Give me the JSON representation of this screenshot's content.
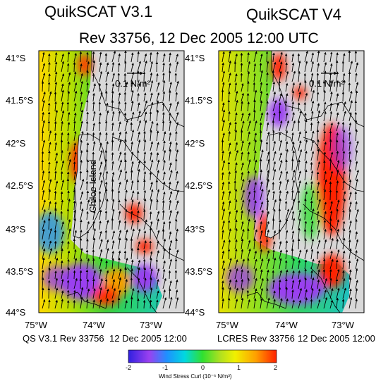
{
  "titles": {
    "left": "QuikSCAT V3.1",
    "right": "QuikSCAT V4",
    "subtitle": "Rev 33756, 12 Dec 2005 12:00 UTC"
  },
  "panels": [
    {
      "id": "v31",
      "footer": "QS V3.1 Rev 33756",
      "footer_date": "12 Dec  2005 12:00",
      "scale_label": "0.1 N/m²",
      "island_label": "Chiloe Island",
      "lat_ticks": [
        "41°S",
        "41.5°S",
        "42°S",
        "42.5°S",
        "43°S",
        "43.5°S",
        "44°S"
      ],
      "lon_ticks": [
        "75°W",
        "74°W",
        "73°W"
      ]
    },
    {
      "id": "v4",
      "footer": "LCRES Rev 33756",
      "footer_date": "12 Dec  2005 12:00",
      "scale_label": "0.1 N/m²",
      "lat_ticks": [
        "41°S",
        "41.5°S",
        "42°S",
        "42.5°S",
        "43°S",
        "43.5°S",
        "44°S"
      ],
      "lon_ticks": [
        "75°W",
        "74°W",
        "73°W"
      ]
    }
  ],
  "colorbar": {
    "label": "Wind Stress Curl (10⁻⁶ N/m³)",
    "ticks": [
      "-2",
      "-1",
      "0",
      "1",
      "2"
    ],
    "range": [
      -2,
      2
    ],
    "colors": [
      "#3020e0",
      "#9a40f0",
      "#1e90ff",
      "#00d8e0",
      "#30e030",
      "#b0e020",
      "#f0f000",
      "#ffa000",
      "#ff2000"
    ]
  },
  "map": {
    "land_color": "#d9d9d9",
    "lat_range": [
      -44,
      -41
    ],
    "lon_range": [
      -75,
      -72.5
    ]
  },
  "chart_data": [
    {
      "type": "heatmap",
      "title": "QuikSCAT V3.1",
      "variable": "Wind Stress Curl",
      "units": "10⁻⁶ N/m³",
      "color_range": [
        -2,
        2
      ],
      "x_axis": "longitude",
      "x_range": [
        -75,
        -72.5
      ],
      "y_axis": "latitude",
      "y_range": [
        -44,
        -41
      ],
      "regions": [
        {
          "lat": -41.3,
          "lon": -74.8,
          "value": 1.2
        },
        {
          "lat": -42.3,
          "lon": -74.3,
          "value": 2.0
        },
        {
          "lat": -43.0,
          "lon": -74.9,
          "value": -0.9
        },
        {
          "lat": -43.7,
          "lon": -74.3,
          "value": -1.8
        },
        {
          "lat": -43.7,
          "lon": -73.9,
          "value": 1.5
        },
        {
          "lat": -42.9,
          "lon": -73.3,
          "value": 2.0
        }
      ]
    },
    {
      "type": "heatmap",
      "title": "QuikSCAT V4",
      "variable": "Wind Stress Curl",
      "units": "10⁻⁶ N/m³",
      "color_range": [
        -2,
        2
      ],
      "x_axis": "longitude",
      "x_range": [
        -75,
        -72.5
      ],
      "y_axis": "latitude",
      "y_range": [
        -44,
        -41
      ],
      "regions": [
        {
          "lat": -41.3,
          "lon": -74.8,
          "value": 0.8
        },
        {
          "lat": -42.4,
          "lon": -73.1,
          "value": 2.0
        },
        {
          "lat": -43.0,
          "lon": -74.3,
          "value": 1.8
        },
        {
          "lat": -43.7,
          "lon": -74.4,
          "value": -1.8
        },
        {
          "lat": -43.6,
          "lon": -73.2,
          "value": 2.0
        }
      ]
    }
  ]
}
